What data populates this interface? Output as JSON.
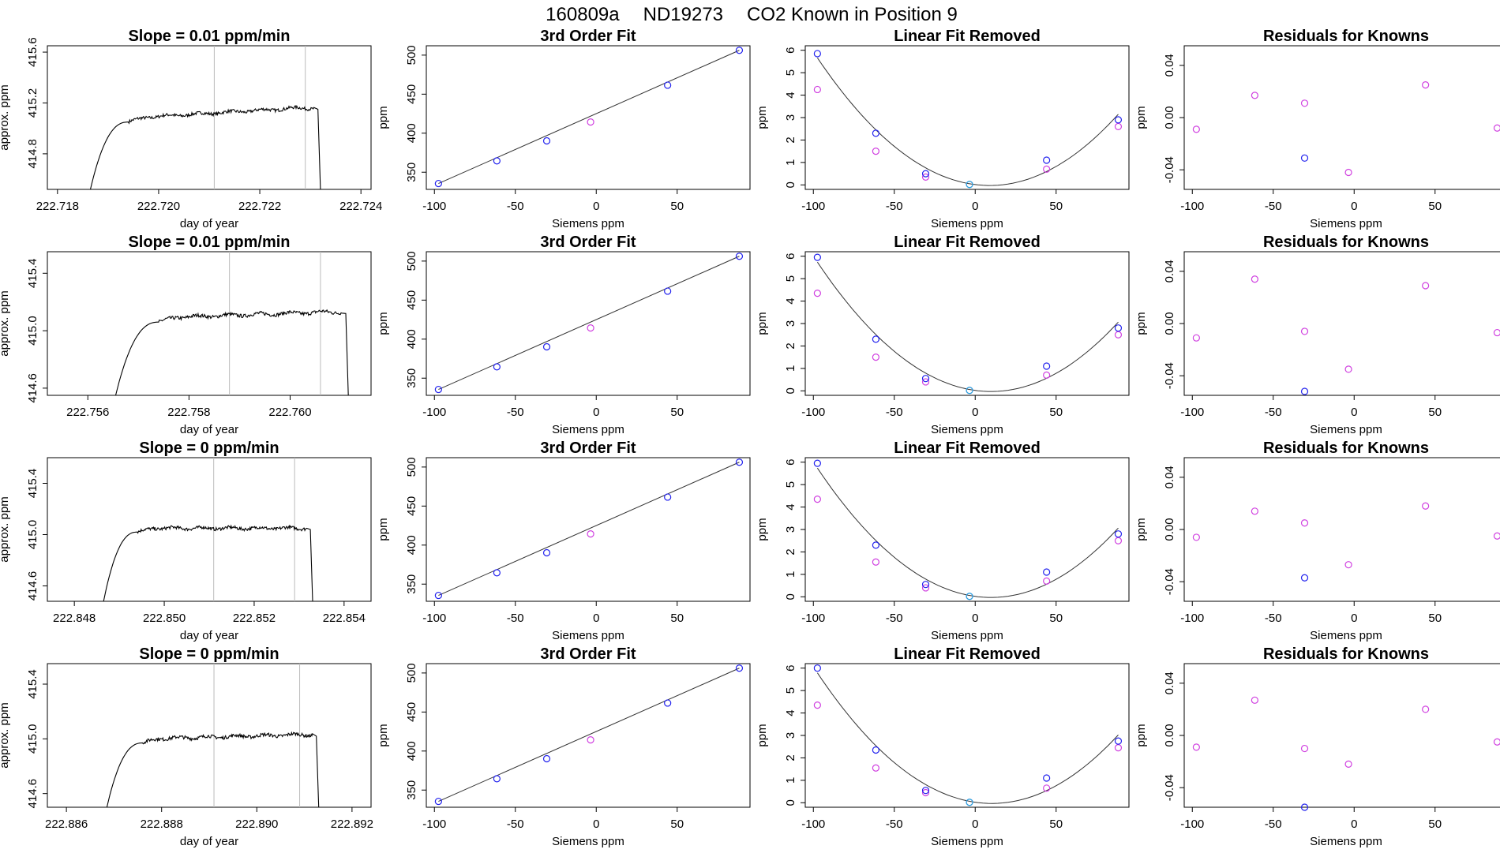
{
  "figure": {
    "title_parts": [
      "160809a",
      "ND19273",
      "CO2 Known in Position  9"
    ]
  },
  "colors": {
    "line": "#000000",
    "blue": "#2222ee",
    "magenta": "#d040e0",
    "cyan": "#22aadd",
    "grid": "#bbbbbb",
    "fit": "#333333"
  },
  "chart_data": [
    {
      "row": 0,
      "series": {
        "title": "Slope =  0.01  ppm/min",
        "type": "line",
        "xlabel": "day of year",
        "ylabel": "approx. ppm",
        "xlim": [
          222.7178,
          222.7242
        ],
        "ylim": [
          414.52,
          415.65
        ],
        "xticks": [
          "222.718",
          "222.720",
          "222.722",
          "222.724"
        ],
        "yticks": [
          "414.8",
          "415.2",
          "415.6"
        ],
        "vlines": [
          222.7211,
          222.7229
        ],
        "start": 222.71865,
        "rise_end": 222.7194,
        "end": 222.72315,
        "level_start": 415.08,
        "level_end": 415.16,
        "floor": 414.52
      },
      "fit": {
        "title": "3rd Order Fit",
        "type": "scatter",
        "xlabel": "Siemens ppm",
        "ylabel": "ppm",
        "xlim": [
          -105,
          95
        ],
        "ylim": [
          328,
          512
        ],
        "xticks": [
          "-100",
          "-50",
          "0",
          "50"
        ],
        "yticks": [
          "350",
          "400",
          "450",
          "500"
        ],
        "x": [
          -97.5,
          -61.4,
          -30.6,
          -3.5,
          44.1,
          88.4
        ],
        "y": [
          335.5,
          364.5,
          390.2,
          414.3,
          461.5,
          506.2
        ],
        "point_colors": [
          "blue",
          "blue",
          "blue",
          "magenta",
          "blue",
          "blue"
        ]
      },
      "linfit": {
        "title": "Linear Fit Removed",
        "type": "scatter",
        "xlabel": "Siemens ppm",
        "ylabel": "ppm",
        "xlim": [
          -105,
          95
        ],
        "ylim": [
          -0.2,
          6.2
        ],
        "xticks": [
          "-100",
          "-50",
          "0",
          "50"
        ],
        "yticks": [
          "0",
          "1",
          "2",
          "3",
          "4",
          "5",
          "6"
        ],
        "x": [
          -97.5,
          -61.4,
          -30.6,
          -3.5,
          44.1,
          88.4
        ],
        "y_blue": [
          5.85,
          2.3,
          0.5,
          0.02,
          1.1,
          2.9
        ],
        "y_magenta": [
          4.25,
          1.5,
          0.35,
          0.02,
          0.7,
          2.6
        ]
      },
      "resid": {
        "title": "Residuals for Knowns",
        "type": "scatter",
        "xlabel": "Siemens ppm",
        "ylabel": "ppm",
        "xlim": [
          -105,
          95
        ],
        "ylim": [
          -0.055,
          0.055
        ],
        "xticks": [
          "-100",
          "-50",
          "0",
          "50"
        ],
        "yticks": [
          "-0.04",
          "0.00",
          "0.04"
        ],
        "x": [
          -97.5,
          -61.4,
          -30.6,
          -30.6,
          -3.5,
          44.1,
          88.4
        ],
        "y": [
          -0.009,
          0.017,
          0.011,
          -0.031,
          -0.042,
          0.025,
          -0.008
        ],
        "point_colors": [
          "magenta",
          "magenta",
          "magenta",
          "blue",
          "magenta",
          "magenta",
          "magenta"
        ]
      }
    },
    {
      "row": 1,
      "series": {
        "title": "Slope =  0.01  ppm/min",
        "type": "line",
        "xlabel": "day of year",
        "ylabel": "approx. ppm",
        "xlim": [
          222.7552,
          222.7616
        ],
        "ylim": [
          414.55,
          415.55
        ],
        "xticks": [
          "222.756",
          "222.758",
          "222.760"
        ],
        "yticks": [
          "414.6",
          "415.0",
          "415.4"
        ],
        "vlines": [
          222.7588,
          222.7606
        ],
        "start": 222.75655,
        "rise_end": 222.7574,
        "end": 222.7611,
        "level_start": 415.09,
        "level_end": 415.13,
        "floor": 414.55
      },
      "fit": {
        "title": "3rd Order Fit",
        "type": "scatter",
        "xlabel": "Siemens ppm",
        "ylabel": "ppm",
        "xlim": [
          -105,
          95
        ],
        "ylim": [
          328,
          512
        ],
        "xticks": [
          "-100",
          "-50",
          "0",
          "50"
        ],
        "yticks": [
          "350",
          "400",
          "450",
          "500"
        ],
        "x": [
          -97.5,
          -61.4,
          -30.6,
          -3.5,
          44.1,
          88.4
        ],
        "y": [
          335.5,
          364.5,
          390.2,
          414.3,
          461.5,
          506.2
        ],
        "point_colors": [
          "blue",
          "blue",
          "blue",
          "magenta",
          "blue",
          "blue"
        ]
      },
      "linfit": {
        "title": "Linear Fit Removed",
        "type": "scatter",
        "xlabel": "Siemens ppm",
        "ylabel": "ppm",
        "xlim": [
          -105,
          95
        ],
        "ylim": [
          -0.2,
          6.2
        ],
        "xticks": [
          "-100",
          "-50",
          "0",
          "50"
        ],
        "yticks": [
          "0",
          "1",
          "2",
          "3",
          "4",
          "5",
          "6"
        ],
        "x": [
          -97.5,
          -61.4,
          -30.6,
          -3.5,
          44.1,
          88.4
        ],
        "y_blue": [
          5.95,
          2.3,
          0.55,
          0.02,
          1.1,
          2.8
        ],
        "y_magenta": [
          4.35,
          1.5,
          0.4,
          0.02,
          0.7,
          2.5
        ]
      },
      "resid": {
        "title": "Residuals for Knowns",
        "type": "scatter",
        "xlabel": "Siemens ppm",
        "ylabel": "ppm",
        "xlim": [
          -105,
          95
        ],
        "ylim": [
          -0.055,
          0.055
        ],
        "xticks": [
          "-100",
          "-50",
          "0",
          "50"
        ],
        "yticks": [
          "-0.04",
          "0.00",
          "0.04"
        ],
        "x": [
          -97.5,
          -61.4,
          -30.6,
          -30.6,
          -3.5,
          44.1,
          88.4
        ],
        "y": [
          -0.011,
          0.034,
          -0.006,
          -0.052,
          -0.035,
          0.029,
          -0.007
        ],
        "point_colors": [
          "magenta",
          "magenta",
          "magenta",
          "blue",
          "magenta",
          "magenta",
          "magenta"
        ]
      }
    },
    {
      "row": 2,
      "series": {
        "title": "Slope =  0  ppm/min",
        "type": "line",
        "xlabel": "day of year",
        "ylabel": "approx. ppm",
        "xlim": [
          222.8474,
          222.8546
        ],
        "ylim": [
          414.48,
          415.6
        ],
        "xticks": [
          "222.848",
          "222.850",
          "222.852",
          "222.854"
        ],
        "yticks": [
          "414.6",
          "415.0",
          "415.4"
        ],
        "vlines": [
          222.8511,
          222.8529
        ],
        "start": 222.84865,
        "rise_end": 222.8494,
        "end": 222.85325,
        "level_start": 415.05,
        "level_end": 415.05,
        "floor": 414.48
      },
      "fit": {
        "title": "3rd Order Fit",
        "type": "scatter",
        "xlabel": "Siemens ppm",
        "ylabel": "ppm",
        "xlim": [
          -105,
          95
        ],
        "ylim": [
          328,
          512
        ],
        "xticks": [
          "-100",
          "-50",
          "0",
          "50"
        ],
        "yticks": [
          "350",
          "400",
          "450",
          "500"
        ],
        "x": [
          -97.5,
          -61.4,
          -30.6,
          -3.5,
          44.1,
          88.4
        ],
        "y": [
          335.5,
          364.5,
          390.2,
          414.3,
          461.5,
          506.2
        ],
        "point_colors": [
          "blue",
          "blue",
          "blue",
          "magenta",
          "blue",
          "blue"
        ]
      },
      "linfit": {
        "title": "Linear Fit Removed",
        "type": "scatter",
        "xlabel": "Siemens ppm",
        "ylabel": "ppm",
        "xlim": [
          -105,
          95
        ],
        "ylim": [
          -0.2,
          6.2
        ],
        "xticks": [
          "-100",
          "-50",
          "0",
          "50"
        ],
        "yticks": [
          "0",
          "1",
          "2",
          "3",
          "4",
          "5",
          "6"
        ],
        "x": [
          -97.5,
          -61.4,
          -30.6,
          -3.5,
          44.1,
          88.4
        ],
        "y_blue": [
          5.95,
          2.3,
          0.55,
          0.02,
          1.1,
          2.8
        ],
        "y_magenta": [
          4.35,
          1.55,
          0.4,
          0.02,
          0.7,
          2.5
        ]
      },
      "resid": {
        "title": "Residuals for Knowns",
        "type": "scatter",
        "xlabel": "Siemens ppm",
        "ylabel": "ppm",
        "xlim": [
          -105,
          95
        ],
        "ylim": [
          -0.055,
          0.055
        ],
        "xticks": [
          "-100",
          "-50",
          "0",
          "50"
        ],
        "yticks": [
          "-0.04",
          "0.00",
          "0.04"
        ],
        "x": [
          -97.5,
          -61.4,
          -30.6,
          -30.6,
          -3.5,
          44.1,
          88.4
        ],
        "y": [
          -0.006,
          0.014,
          0.005,
          -0.037,
          -0.027,
          0.018,
          -0.005
        ],
        "point_colors": [
          "magenta",
          "magenta",
          "magenta",
          "blue",
          "magenta",
          "magenta",
          "magenta"
        ]
      }
    },
    {
      "row": 3,
      "series": {
        "title": "Slope =  0  ppm/min",
        "type": "line",
        "xlabel": "day of year",
        "ylabel": "approx. ppm",
        "xlim": [
          222.8856,
          222.8924
        ],
        "ylim": [
          414.5,
          415.55
        ],
        "xticks": [
          "222.886",
          "222.888",
          "222.890",
          "222.892"
        ],
        "yticks": [
          "414.6",
          "415.0",
          "415.4"
        ],
        "vlines": [
          222.8891,
          222.8909
        ],
        "start": 222.88685,
        "rise_end": 222.8876,
        "end": 222.89125,
        "level_start": 415.0,
        "level_end": 415.03,
        "floor": 414.5
      },
      "fit": {
        "title": "3rd Order Fit",
        "type": "scatter",
        "xlabel": "Siemens ppm",
        "ylabel": "ppm",
        "xlim": [
          -105,
          95
        ],
        "ylim": [
          328,
          512
        ],
        "xticks": [
          "-100",
          "-50",
          "0",
          "50"
        ],
        "yticks": [
          "350",
          "400",
          "450",
          "500"
        ],
        "x": [
          -97.5,
          -61.4,
          -30.6,
          -3.5,
          44.1,
          88.4
        ],
        "y": [
          335.5,
          364.5,
          390.2,
          414.3,
          461.5,
          506.2
        ],
        "point_colors": [
          "blue",
          "blue",
          "blue",
          "magenta",
          "blue",
          "blue"
        ]
      },
      "linfit": {
        "title": "Linear Fit Removed",
        "type": "scatter",
        "xlabel": "Siemens ppm",
        "ylabel": "ppm",
        "xlim": [
          -105,
          95
        ],
        "ylim": [
          -0.2,
          6.2
        ],
        "xticks": [
          "-100",
          "-50",
          "0",
          "50"
        ],
        "yticks": [
          "0",
          "1",
          "2",
          "3",
          "4",
          "5",
          "6"
        ],
        "x": [
          -97.5,
          -61.4,
          -30.6,
          -3.5,
          44.1,
          88.4
        ],
        "y_blue": [
          6.0,
          2.35,
          0.55,
          0.02,
          1.1,
          2.75
        ],
        "y_magenta": [
          4.35,
          1.55,
          0.45,
          0.02,
          0.65,
          2.45
        ]
      },
      "resid": {
        "title": "Residuals for Knowns",
        "type": "scatter",
        "xlabel": "Siemens ppm",
        "ylabel": "ppm",
        "xlim": [
          -105,
          95
        ],
        "ylim": [
          -0.055,
          0.055
        ],
        "xticks": [
          "-100",
          "-50",
          "0",
          "50"
        ],
        "yticks": [
          "-0.04",
          "0.00",
          "0.04"
        ],
        "x": [
          -97.5,
          -61.4,
          -30.6,
          -30.6,
          -3.5,
          44.1,
          88.4
        ],
        "y": [
          -0.009,
          0.027,
          -0.01,
          -0.055,
          -0.022,
          0.02,
          -0.005
        ],
        "point_colors": [
          "magenta",
          "magenta",
          "magenta",
          "blue",
          "magenta",
          "magenta",
          "magenta"
        ]
      }
    }
  ]
}
